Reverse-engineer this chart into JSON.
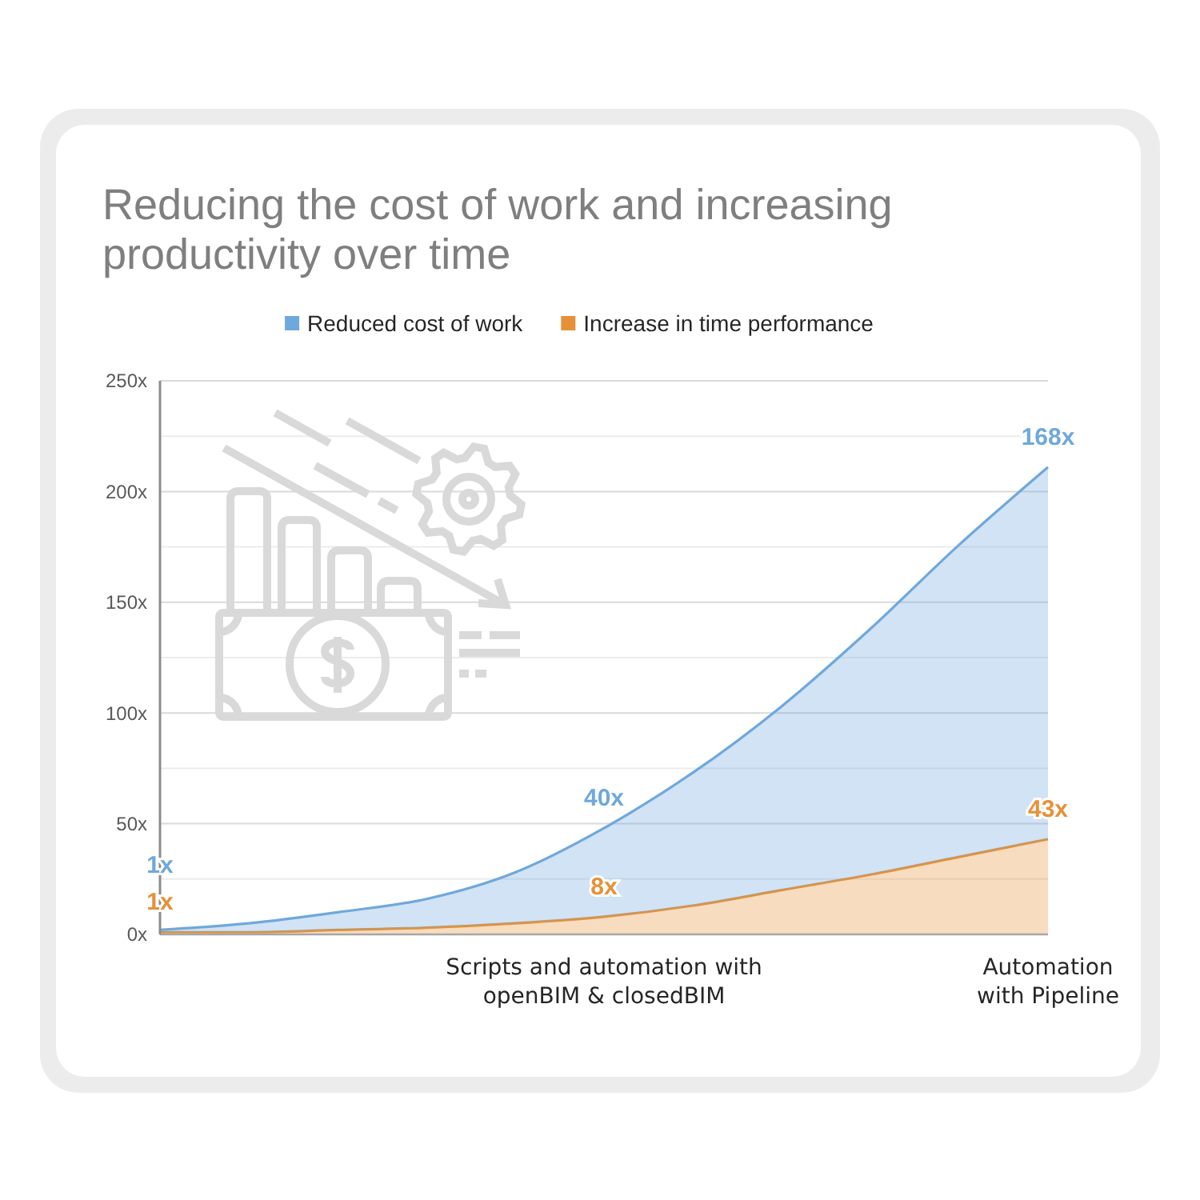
{
  "chart_data": {
    "type": "area",
    "title": "Reducing the cost of work and increasing productivity over time",
    "categories": [
      null,
      null,
      null,
      null,
      null,
      "Scripts and automation with openBIM & closedBIM",
      null,
      null,
      null,
      null,
      "Automation with Pipeline"
    ],
    "series": [
      {
        "name": "Increase in time performance",
        "color": "#e69138",
        "values": [
          1,
          1,
          2,
          3,
          5,
          8,
          13,
          20,
          27,
          35,
          43
        ],
        "value_labels": [
          "1x",
          null,
          null,
          null,
          null,
          "8x",
          null,
          null,
          null,
          null,
          "43x"
        ]
      },
      {
        "name": "Reduced cost of work",
        "color": "#6fa8dc",
        "values": [
          1,
          4,
          8,
          13,
          23,
          40,
          60,
          83,
          111,
          141,
          168
        ],
        "value_labels": [
          "1x",
          null,
          null,
          null,
          null,
          "40x",
          null,
          null,
          null,
          null,
          "168x"
        ]
      }
    ],
    "stacked": true,
    "ylim": [
      0,
      250
    ],
    "yticks": [
      {
        "value": 0,
        "label": "0x"
      },
      {
        "value": 25,
        "label": null
      },
      {
        "value": 50,
        "label": "50x"
      },
      {
        "value": 75,
        "label": null
      },
      {
        "value": 100,
        "label": "100x"
      },
      {
        "value": 125,
        "label": null
      },
      {
        "value": 150,
        "label": "150x"
      },
      {
        "value": 175,
        "label": null
      },
      {
        "value": 200,
        "label": "200x"
      },
      {
        "value": 225,
        "label": null
      },
      {
        "value": 250,
        "label": "250x"
      }
    ],
    "grid": "y",
    "legend": "top"
  }
}
